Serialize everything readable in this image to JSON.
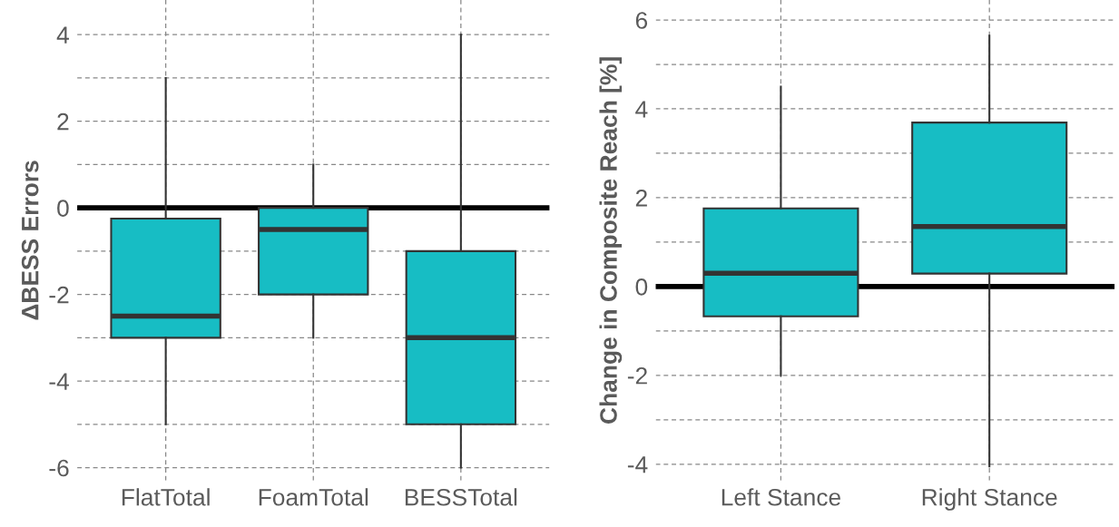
{
  "chart_data": [
    {
      "type": "box",
      "ylabel": "ΔBESS Errors",
      "categories": [
        "FlatTotal",
        "FoamTotal",
        "BESSTotal"
      ],
      "boxes": [
        {
          "low": -5,
          "q1": -3,
          "median": -2.5,
          "q3": -0.25,
          "high": 3
        },
        {
          "low": -3,
          "q1": -2,
          "median": -0.5,
          "q3": 0,
          "high": 1
        },
        {
          "low": -6,
          "q1": -5,
          "median": -3,
          "q3": -1,
          "high": 4
        }
      ],
      "color": "#17bdc4",
      "ylim": [
        -6.3,
        4.8
      ],
      "yticks": [
        -6,
        {
          "value": -5,
          "label": null
        },
        -4,
        {
          "value": -3,
          "label": null
        },
        -2,
        {
          "value": -1,
          "label": null
        },
        0,
        {
          "value": 1,
          "label": null
        },
        2,
        {
          "value": 3,
          "label": null
        },
        4
      ],
      "ref_lines": [
        {
          "axis": "y",
          "value": 0,
          "color": "#000000"
        }
      ],
      "grid": true
    },
    {
      "type": "box",
      "ylabel": "Change in Composite Reach [%]",
      "categories": [
        "Left Stance",
        "Right Stance"
      ],
      "boxes": [
        {
          "low": -2,
          "q1": -0.67,
          "median": 0.3,
          "q3": 1.76,
          "high": 4.5
        },
        {
          "low": -4.05,
          "q1": 0.29,
          "median": 1.35,
          "q3": 3.69,
          "high": 5.65
        }
      ],
      "color": "#17bdc4",
      "ylim": [
        -4.37,
        6.45
      ],
      "yticks": [
        -4,
        {
          "value": -3,
          "label": null
        },
        -2,
        {
          "value": -1,
          "label": null
        },
        0,
        {
          "value": 1,
          "label": null
        },
        2,
        {
          "value": 3,
          "label": null
        },
        4,
        {
          "value": 5,
          "label": null
        },
        6
      ],
      "ref_lines": [
        {
          "axis": "y",
          "value": 0,
          "color": "#000000"
        }
      ],
      "grid": true
    }
  ]
}
